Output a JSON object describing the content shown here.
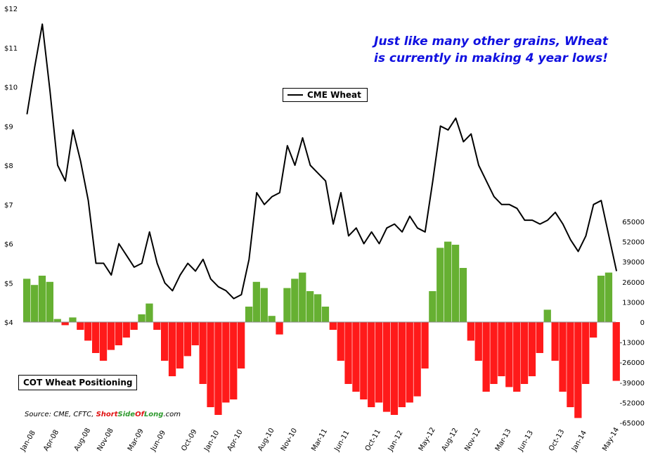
{
  "annotation": {
    "line1": "Just like many other grains, Wheat",
    "line2": "is currently in making 4 year lows!"
  },
  "legend_price": "CME Wheat",
  "legend_cot": "COT Wheat Positioning",
  "source": {
    "prefix": "Source: CME, CFTC, ",
    "brand_short": "Short",
    "brand_side": "Side",
    "brand_of": "Of",
    "brand_long": "Long",
    "brand_suffix": ".com"
  },
  "colors": {
    "price_line": "#000000",
    "positive_bars": "#66b032",
    "negative_bars": "#ff1a1a",
    "annotation": "#1010e0"
  },
  "chart_data": {
    "type": "bar+line",
    "x_tick_labels": [
      "Jan-08",
      "Apr-08",
      "Aug-08",
      "Nov-08",
      "Mar-09",
      "Jun-09",
      "Oct-09",
      "Jan-10",
      "Apr-10",
      "Aug-10",
      "Nov-10",
      "Mar-11",
      "Jun-11",
      "Oct-11",
      "Jan-12",
      "May-12",
      "Aug-12",
      "Nov-12",
      "Mar-13",
      "Jun-13",
      "Oct-13",
      "Jan-14",
      "May-14"
    ],
    "x_tick_dates": [
      "2008-01",
      "2008-04",
      "2008-08",
      "2008-11",
      "2009-03",
      "2009-06",
      "2009-10",
      "2010-01",
      "2010-04",
      "2010-08",
      "2010-11",
      "2011-03",
      "2011-06",
      "2011-10",
      "2012-01",
      "2012-05",
      "2012-08",
      "2012-11",
      "2013-03",
      "2013-06",
      "2013-10",
      "2014-01",
      "2014-05"
    ],
    "left_axis": {
      "ticks": [
        "$4",
        "$5",
        "$6",
        "$7",
        "$8",
        "$9",
        "$10",
        "$11",
        "$12"
      ],
      "ylim": [
        4,
        12
      ]
    },
    "right_axis": {
      "ticks": [
        "65000",
        "52000",
        "39000",
        "26000",
        "13000",
        "0",
        "-13000",
        "-26000",
        "-39000",
        "-52000",
        "-65000"
      ],
      "ylim": [
        -65000,
        65000
      ]
    },
    "series": [
      {
        "name": "CME Wheat",
        "type": "line",
        "axis": "left",
        "dates": [
          "2008-01",
          "2008-02",
          "2008-03",
          "2008-04",
          "2008-05",
          "2008-06",
          "2008-07",
          "2008-08",
          "2008-09",
          "2008-10",
          "2008-11",
          "2008-12",
          "2009-01",
          "2009-02",
          "2009-03",
          "2009-04",
          "2009-05",
          "2009-06",
          "2009-07",
          "2009-08",
          "2009-09",
          "2009-10",
          "2009-11",
          "2009-12",
          "2010-01",
          "2010-02",
          "2010-03",
          "2010-04",
          "2010-05",
          "2010-06",
          "2010-07",
          "2010-08",
          "2010-09",
          "2010-10",
          "2010-11",
          "2010-12",
          "2011-01",
          "2011-02",
          "2011-03",
          "2011-04",
          "2011-05",
          "2011-06",
          "2011-07",
          "2011-08",
          "2011-09",
          "2011-10",
          "2011-11",
          "2011-12",
          "2012-01",
          "2012-02",
          "2012-03",
          "2012-04",
          "2012-05",
          "2012-06",
          "2012-07",
          "2012-08",
          "2012-09",
          "2012-10",
          "2012-11",
          "2012-12",
          "2013-01",
          "2013-02",
          "2013-03",
          "2013-04",
          "2013-05",
          "2013-06",
          "2013-07",
          "2013-08",
          "2013-09",
          "2013-10",
          "2013-11",
          "2013-12",
          "2014-01",
          "2014-02",
          "2014-03",
          "2014-04",
          "2014-05",
          "2014-06"
        ],
        "values": [
          9.3,
          10.5,
          11.6,
          9.9,
          8.0,
          7.6,
          8.9,
          8.1,
          7.1,
          5.5,
          5.5,
          5.2,
          6.0,
          5.7,
          5.4,
          5.5,
          6.3,
          5.5,
          5.0,
          4.8,
          5.2,
          5.5,
          5.3,
          5.6,
          5.1,
          4.9,
          4.8,
          4.6,
          4.7,
          5.6,
          7.3,
          7.0,
          7.2,
          7.3,
          8.5,
          8.0,
          8.7,
          8.0,
          7.8,
          7.6,
          6.5,
          7.3,
          6.2,
          6.4,
          6.0,
          6.3,
          6.0,
          6.4,
          6.5,
          6.3,
          6.7,
          6.4,
          6.3,
          7.6,
          9.0,
          8.9,
          9.2,
          8.6,
          8.8,
          8.0,
          7.6,
          7.2,
          7.0,
          7.0,
          6.9,
          6.6,
          6.6,
          6.5,
          6.6,
          6.8,
          6.5,
          6.1,
          5.8,
          6.2,
          7.0,
          7.1,
          6.2,
          5.3
        ]
      },
      {
        "name": "COT Wheat Positioning",
        "type": "bar",
        "axis": "right",
        "dates": [
          "2008-01",
          "2008-02",
          "2008-03",
          "2008-04",
          "2008-05",
          "2008-06",
          "2008-07",
          "2008-08",
          "2008-09",
          "2008-10",
          "2008-11",
          "2008-12",
          "2009-01",
          "2009-02",
          "2009-03",
          "2009-04",
          "2009-05",
          "2009-06",
          "2009-07",
          "2009-08",
          "2009-09",
          "2009-10",
          "2009-11",
          "2009-12",
          "2010-01",
          "2010-02",
          "2010-03",
          "2010-04",
          "2010-05",
          "2010-06",
          "2010-07",
          "2010-08",
          "2010-09",
          "2010-10",
          "2010-11",
          "2010-12",
          "2011-01",
          "2011-02",
          "2011-03",
          "2011-04",
          "2011-05",
          "2011-06",
          "2011-07",
          "2011-08",
          "2011-09",
          "2011-10",
          "2011-11",
          "2011-12",
          "2012-01",
          "2012-02",
          "2012-03",
          "2012-04",
          "2012-05",
          "2012-06",
          "2012-07",
          "2012-08",
          "2012-09",
          "2012-10",
          "2012-11",
          "2012-12",
          "2013-01",
          "2013-02",
          "2013-03",
          "2013-04",
          "2013-05",
          "2013-06",
          "2013-07",
          "2013-08",
          "2013-09",
          "2013-10",
          "2013-11",
          "2013-12",
          "2014-01",
          "2014-02",
          "2014-03",
          "2014-04",
          "2014-05",
          "2014-06"
        ],
        "values": [
          28000,
          24000,
          30000,
          26000,
          2000,
          -2000,
          3000,
          -5000,
          -12000,
          -20000,
          -25000,
          -18000,
          -15000,
          -10000,
          -5000,
          5000,
          12000,
          -5000,
          -25000,
          -35000,
          -30000,
          -22000,
          -15000,
          -40000,
          -55000,
          -60000,
          -52000,
          -50000,
          -30000,
          10000,
          26000,
          22000,
          4000,
          -8000,
          22000,
          28000,
          32000,
          20000,
          18000,
          10000,
          -5000,
          -25000,
          -40000,
          -45000,
          -50000,
          -55000,
          -52000,
          -58000,
          -60000,
          -55000,
          -52000,
          -48000,
          -30000,
          20000,
          48000,
          52000,
          50000,
          35000,
          -12000,
          -25000,
          -45000,
          -40000,
          -35000,
          -42000,
          -45000,
          -40000,
          -35000,
          -20000,
          8000,
          -25000,
          -45000,
          -55000,
          -62000,
          -40000,
          -10000,
          30000,
          32000,
          -38000
        ]
      }
    ]
  }
}
